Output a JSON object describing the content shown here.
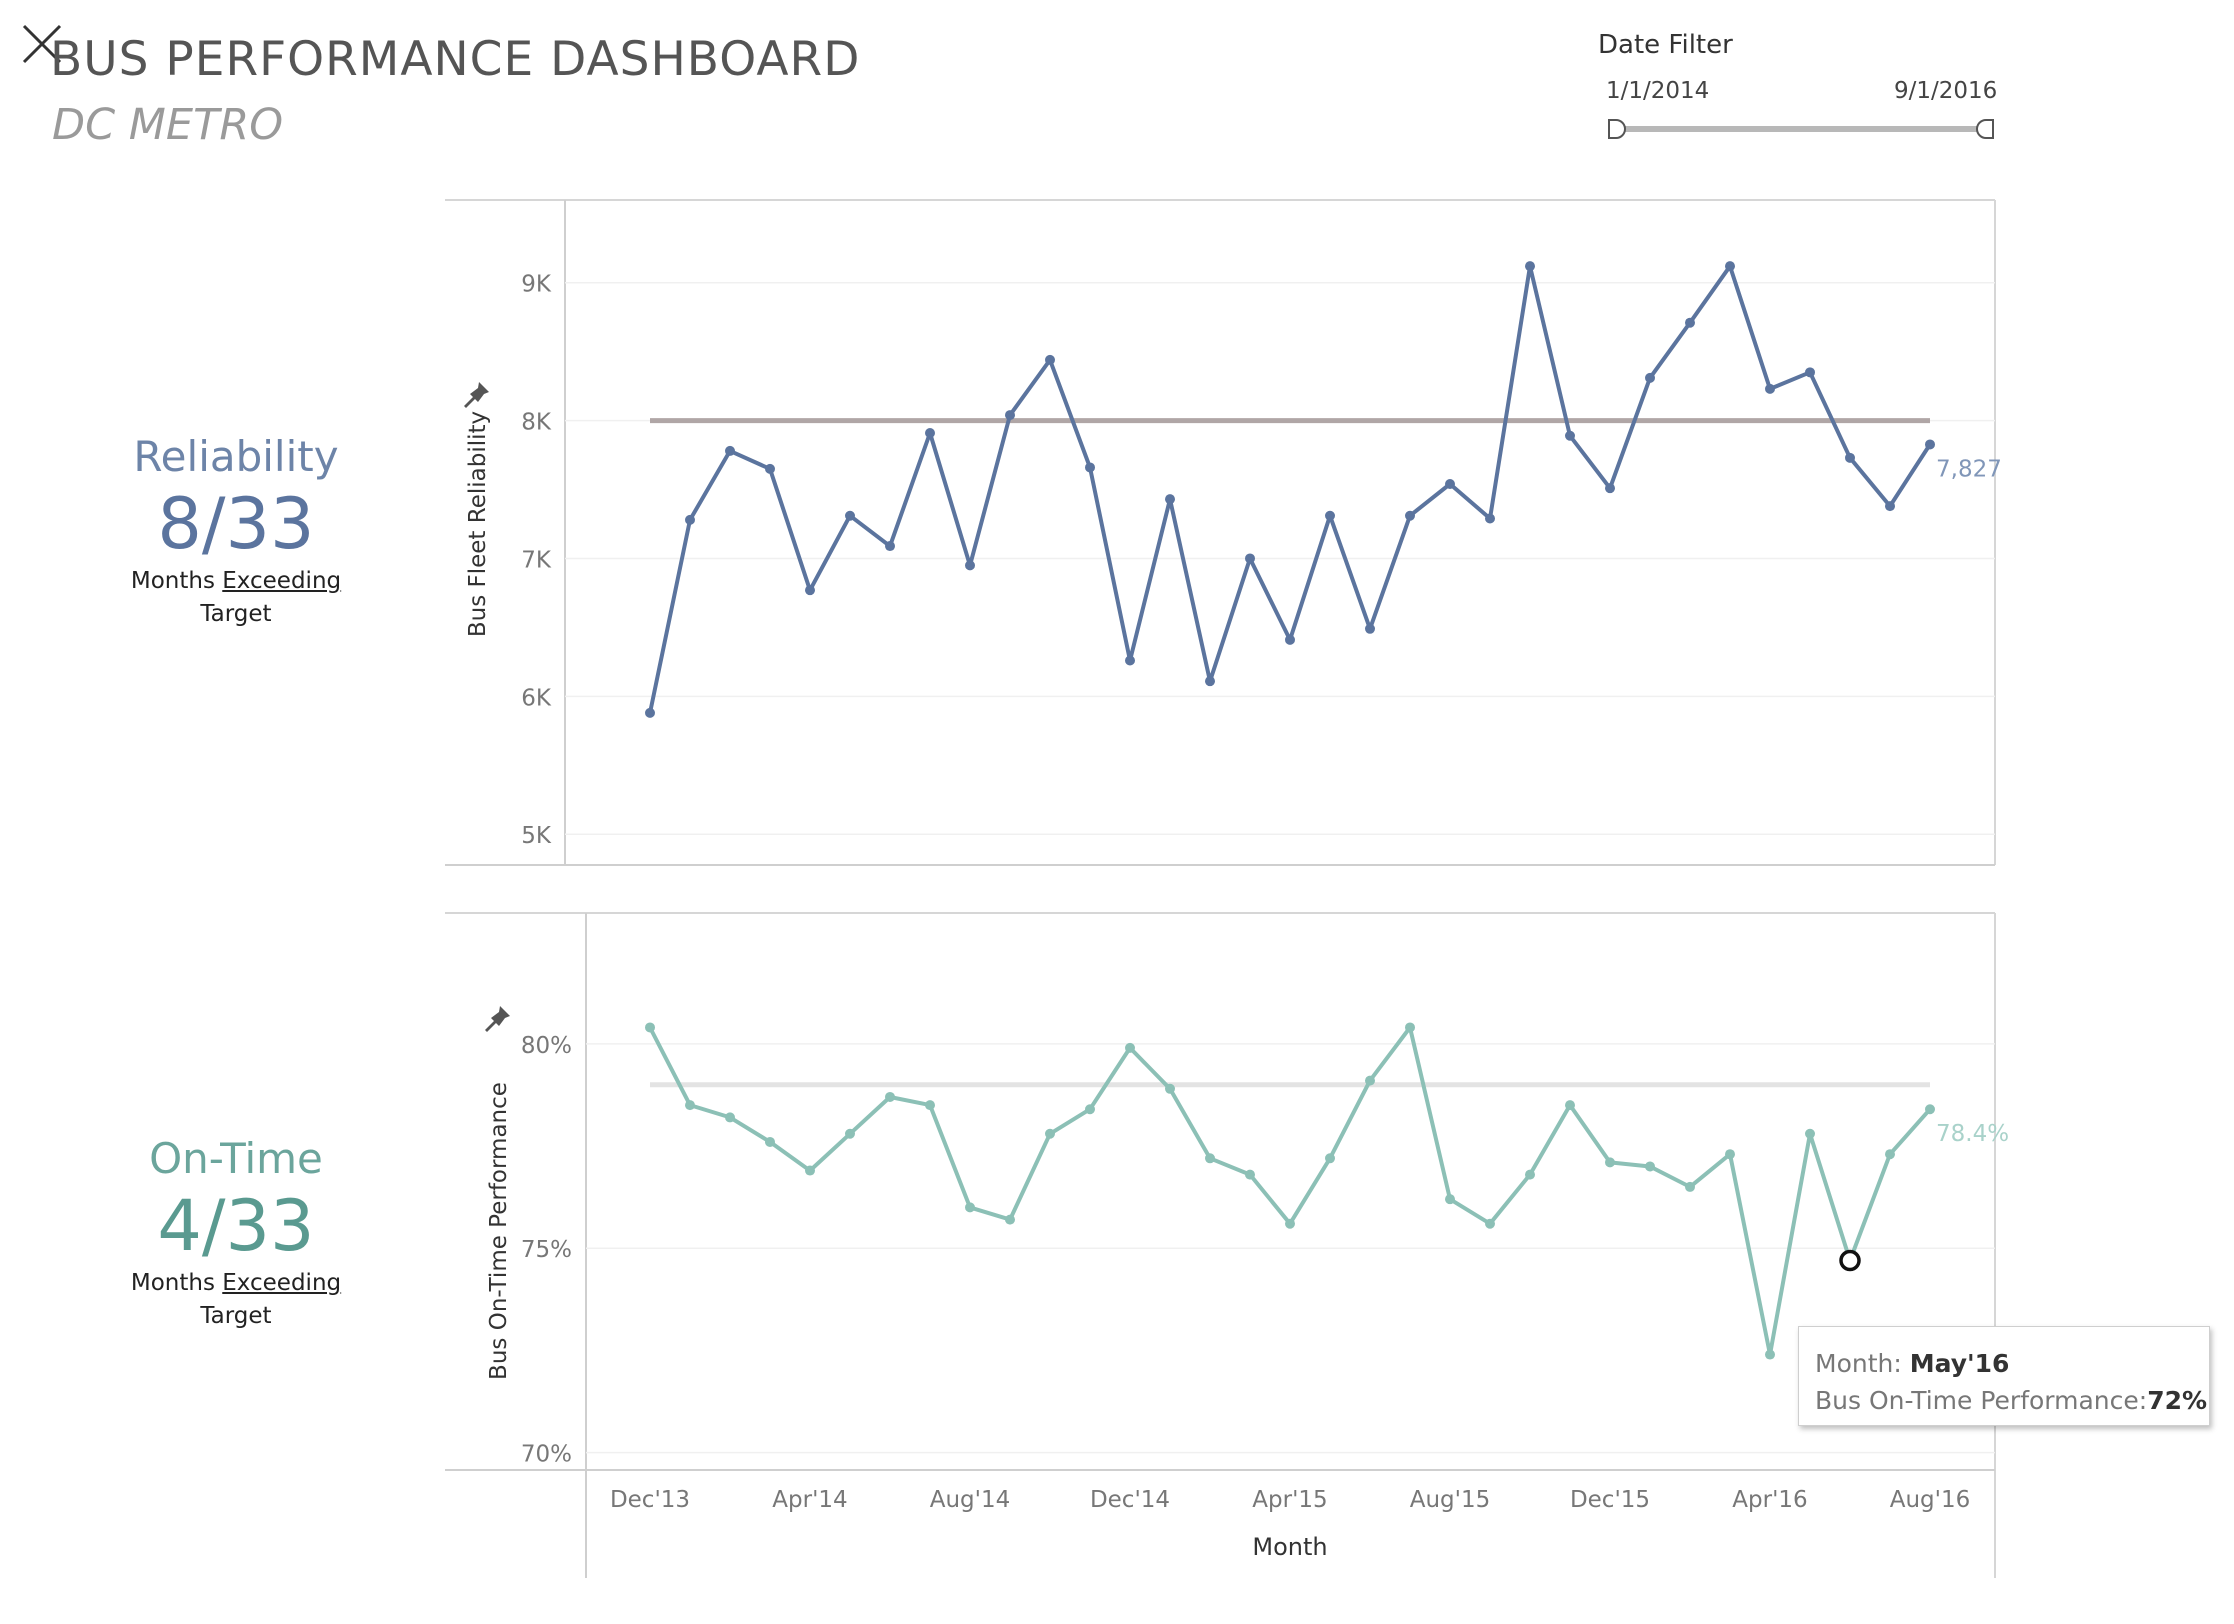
{
  "header": {
    "title": "BUS PERFORMANCE DASHBOARD",
    "subtitle": "DC METRO"
  },
  "date_filter": {
    "label": "Date Filter",
    "start": "1/1/2014",
    "end": "9/1/2016",
    "range_fraction": [
      0,
      1
    ]
  },
  "kpis": {
    "reliability": {
      "name": "Reliability",
      "value": "8/33",
      "sub_prefix": "Months ",
      "sub_link": "Exceeding",
      "sub_suffix": "Target",
      "color": "#5b749e"
    },
    "ontime": {
      "name": "On-Time",
      "value": "4/33",
      "sub_prefix": "Months ",
      "sub_link": "Exceeding",
      "sub_suffix": "Target",
      "color": "#5a9a90"
    }
  },
  "tooltip": {
    "month_label": "Month: ",
    "month_value": "May'16",
    "metric_label": "Bus On-Time Performance:",
    "metric_value": "72%"
  },
  "chart_data": [
    {
      "type": "line",
      "ylabel": "Bus Fleet Reliability",
      "y_ticks": [
        "5K",
        "6K",
        "7K",
        "8K",
        "9K"
      ],
      "y_tick_values": [
        5000,
        6000,
        7000,
        8000,
        9000
      ],
      "ylim": [
        4900,
        9600
      ],
      "target": 8000,
      "series": [
        {
          "color": "#5b749e",
          "values": [
            5880,
            7280,
            7780,
            7650,
            6770,
            7310,
            7090,
            7910,
            6950,
            8040,
            8440,
            7660,
            6260,
            7430,
            6110,
            7000,
            6410,
            7310,
            6490,
            7310,
            7540,
            7290,
            9120,
            7890,
            7510,
            8310,
            8710,
            9120,
            8230,
            8350,
            7730,
            7380,
            7827
          ]
        }
      ],
      "end_label": "7,827",
      "target_color": "#b0a6a6",
      "grid": true
    },
    {
      "type": "line",
      "ylabel": "Bus On-Time Performance",
      "xlabel": "Month",
      "x_tick_labels": [
        "Dec'13",
        "Apr'14",
        "Aug'14",
        "Dec'14",
        "Apr'15",
        "Aug'15",
        "Dec'15",
        "Apr'16",
        "Aug'16"
      ],
      "x_tick_indices": [
        0,
        4,
        8,
        12,
        16,
        20,
        24,
        28,
        32
      ],
      "y_ticks": [
        "70%",
        "75%",
        "80%"
      ],
      "y_tick_values": [
        70,
        75,
        80
      ],
      "ylim": [
        69.6,
        83.2
      ],
      "target": 79.0,
      "series": [
        {
          "color": "#8cc0b6",
          "values": [
            80.4,
            78.5,
            78.2,
            77.6,
            76.9,
            77.8,
            78.7,
            78.5,
            76.0,
            75.7,
            77.8,
            78.4,
            79.9,
            78.9,
            77.2,
            76.8,
            75.6,
            77.2,
            79.1,
            80.4,
            76.2,
            75.6,
            76.8,
            78.5,
            77.1,
            77.0,
            76.5,
            77.3,
            72.4,
            77.8,
            74.7,
            77.3,
            78.4
          ]
        }
      ],
      "end_label": "78.4%",
      "highlight_index": 30,
      "target_color": "#e3e3e3",
      "grid": true
    }
  ]
}
